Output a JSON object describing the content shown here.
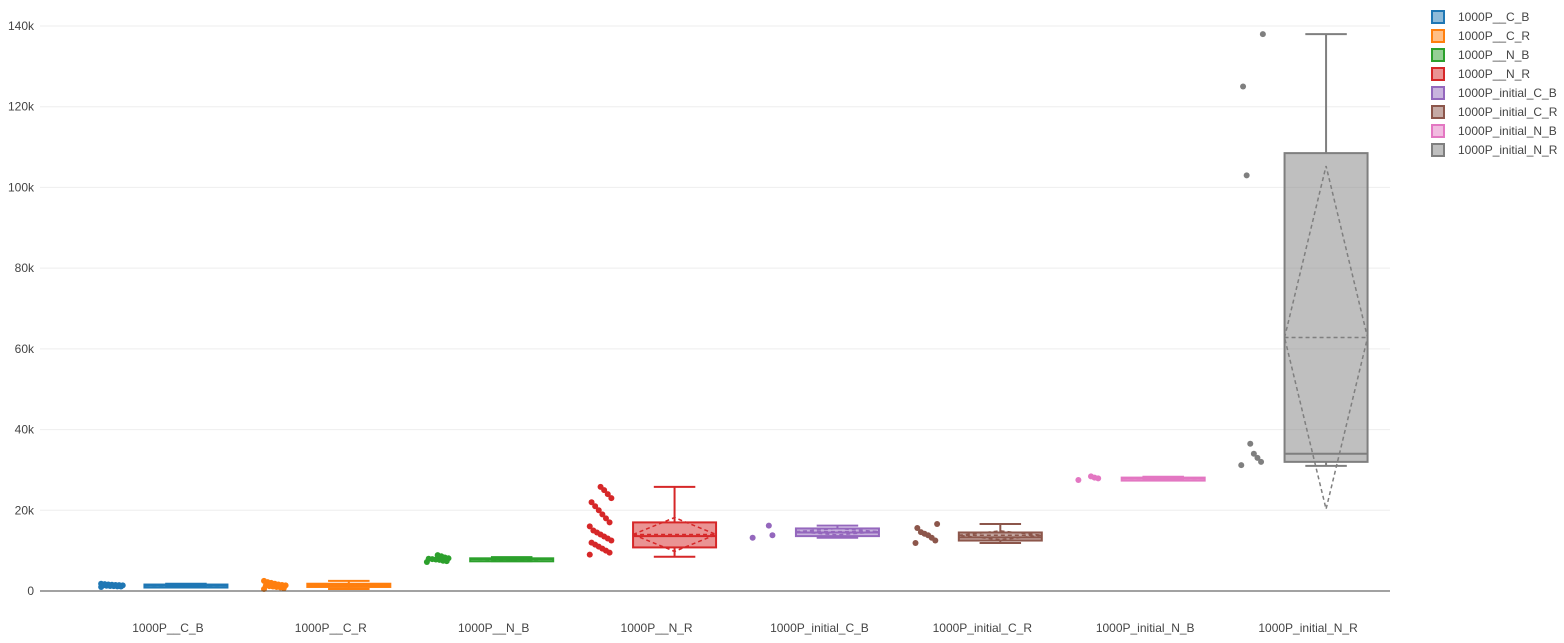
{
  "chart_data": {
    "type": "box",
    "title": "",
    "xlabel": "",
    "ylabel": "",
    "ylim": [
      0,
      140000
    ],
    "yticks": [
      {
        "value": 0,
        "label": "0"
      },
      {
        "value": 20000,
        "label": "20k"
      },
      {
        "value": 40000,
        "label": "40k"
      },
      {
        "value": 60000,
        "label": "60k"
      },
      {
        "value": 80000,
        "label": "80k"
      },
      {
        "value": 100000,
        "label": "100k"
      },
      {
        "value": 120000,
        "label": "120k"
      },
      {
        "value": 140000,
        "label": "140k"
      }
    ],
    "grid": true,
    "legend_position": "top-right",
    "categories": [
      "1000P__C_B",
      "1000P__C_R",
      "1000P__N_B",
      "1000P__N_R",
      "1000P_initial_C_B",
      "1000P_initial_C_R",
      "1000P_initial_N_B",
      "1000P_initial_N_R"
    ],
    "series": [
      {
        "name": "1000P__C_B",
        "color": "#1f77b4",
        "min": 1000,
        "q1": 1200,
        "median": 1400,
        "q3": 1600,
        "max": 1800,
        "mean": 1400,
        "sd": 150,
        "points": [
          1000,
          1100,
          1150,
          1200,
          1250,
          1300,
          1350,
          1400,
          1450,
          1500,
          1550,
          1600,
          1700,
          1800
        ]
      },
      {
        "name": "1000P__C_R",
        "color": "#ff7f0e",
        "min": 500,
        "q1": 1000,
        "median": 1400,
        "q3": 1800,
        "max": 2500,
        "mean": 1400,
        "sd": 400,
        "points": [
          500,
          700,
          900,
          1000,
          1100,
          1200,
          1300,
          1400,
          1500,
          1600,
          1800,
          2000,
          2200,
          2500
        ]
      },
      {
        "name": "1000P__N_B",
        "color": "#2ca02c",
        "min": 7400,
        "q1": 7700,
        "median": 7900,
        "q3": 8100,
        "max": 8400,
        "mean": 7900,
        "sd": 250,
        "points": [
          7200,
          7400,
          7500,
          7700,
          7800,
          7900,
          8000,
          8100,
          8300,
          8600,
          8900
        ]
      },
      {
        "name": "1000P__N_R",
        "color": "#d62728",
        "min": 8500,
        "q1": 10800,
        "median": 13600,
        "q3": 17000,
        "max": 25800,
        "mean": 14000,
        "sd": 4200,
        "points": [
          9000,
          9500,
          10000,
          10500,
          11000,
          11500,
          12000,
          12500,
          13000,
          13500,
          14000,
          14500,
          15000,
          16000,
          17000,
          18000,
          19000,
          20000,
          21000,
          22000,
          23000,
          24000,
          25000,
          25800
        ]
      },
      {
        "name": "1000P_initial_C_B",
        "color": "#9467bd",
        "min": 13200,
        "q1": 13600,
        "median": 14500,
        "q3": 15500,
        "max": 16200,
        "mean": 14700,
        "sd": 800,
        "points": [
          13200,
          13800,
          16200
        ]
      },
      {
        "name": "1000P_initial_C_R",
        "color": "#8c564b",
        "min": 11900,
        "q1": 12500,
        "median": 13300,
        "q3": 14500,
        "max": 16600,
        "mean": 13800,
        "sd": 1100,
        "points": [
          11900,
          12500,
          13200,
          13800,
          14200,
          14600,
          15600,
          16600
        ]
      },
      {
        "name": "1000P_initial_N_B",
        "color": "#e377c2",
        "min": 27600,
        "q1": 27700,
        "median": 27900,
        "q3": 28100,
        "max": 28300,
        "mean": 27900,
        "sd": 150,
        "points": [
          27500,
          27900,
          28100,
          28400
        ]
      },
      {
        "name": "1000P_initial_N_R",
        "color": "#7f7f7f",
        "min": 31000,
        "q1": 32000,
        "median": 34000,
        "q3": 108500,
        "max": 138000,
        "mean": 62800,
        "sd": 42500,
        "points": [
          31200,
          32000,
          33000,
          34000,
          36500,
          103000,
          125000,
          138000
        ]
      }
    ]
  }
}
